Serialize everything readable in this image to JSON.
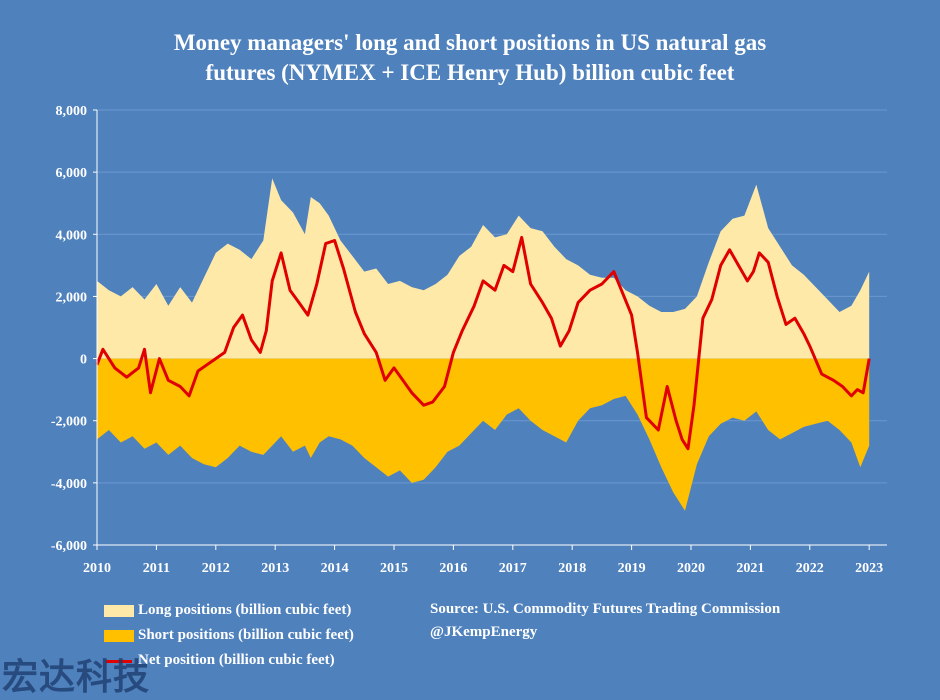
{
  "chart_data": {
    "type": "area",
    "title_line1": "Money managers' long and short positions in US natural gas",
    "title_line2": "futures (NYMEX + ICE Henry Hub) billion cubic feet",
    "xlabel": "",
    "ylabel": "",
    "xlim": [
      2010,
      2023.3
    ],
    "ylim": [
      -6000,
      8000
    ],
    "yticks": [
      -6000,
      -4000,
      -2000,
      0,
      2000,
      4000,
      6000,
      8000
    ],
    "ytick_labels": [
      "-6,000",
      "-4,000",
      "-2,000",
      "0",
      "2,000",
      "4,000",
      "6,000",
      "8,000"
    ],
    "xticks": [
      2010,
      2011,
      2012,
      2013,
      2014,
      2015,
      2016,
      2017,
      2018,
      2019,
      2020,
      2021,
      2022,
      2023
    ],
    "xtick_labels": [
      "2010",
      "2011",
      "2012",
      "2013",
      "2014",
      "2015",
      "2016",
      "2017",
      "2018",
      "2019",
      "2020",
      "2021",
      "2022",
      "2023"
    ],
    "grid": "horizontal",
    "legend_position": "bottom-left",
    "series": [
      {
        "name": "Long positions (billion cubic feet)",
        "type": "area",
        "color": "#ffe9a8",
        "x": [
          2010.0,
          2010.2,
          2010.4,
          2010.6,
          2010.8,
          2011.0,
          2011.2,
          2011.4,
          2011.6,
          2011.8,
          2012.0,
          2012.2,
          2012.4,
          2012.6,
          2012.8,
          2012.95,
          2013.1,
          2013.3,
          2013.5,
          2013.6,
          2013.75,
          2013.9,
          2014.1,
          2014.3,
          2014.5,
          2014.7,
          2014.9,
          2015.1,
          2015.3,
          2015.5,
          2015.7,
          2015.9,
          2016.1,
          2016.3,
          2016.5,
          2016.7,
          2016.9,
          2017.1,
          2017.3,
          2017.5,
          2017.7,
          2017.9,
          2018.1,
          2018.3,
          2018.5,
          2018.7,
          2018.9,
          2019.1,
          2019.3,
          2019.5,
          2019.7,
          2019.9,
          2020.1,
          2020.3,
          2020.5,
          2020.7,
          2020.9,
          2021.1,
          2021.3,
          2021.5,
          2021.7,
          2021.9,
          2022.1,
          2022.3,
          2022.5,
          2022.7,
          2022.85,
          2023.0
        ],
        "values": [
          2500,
          2200,
          2000,
          2300,
          1900,
          2400,
          1700,
          2300,
          1800,
          2600,
          3400,
          3700,
          3500,
          3200,
          3800,
          5800,
          5100,
          4700,
          4000,
          5200,
          5000,
          4600,
          3800,
          3300,
          2800,
          2900,
          2400,
          2500,
          2300,
          2200,
          2400,
          2700,
          3300,
          3600,
          4300,
          3900,
          4000,
          4600,
          4200,
          4100,
          3600,
          3200,
          3000,
          2700,
          2600,
          2600,
          2200,
          2000,
          1700,
          1500,
          1500,
          1600,
          2000,
          3100,
          4100,
          4500,
          4600,
          5600,
          4200,
          3600,
          3000,
          2700,
          2300,
          1900,
          1500,
          1700,
          2200,
          2800
        ]
      },
      {
        "name": "Short positions (billion cubic feet)",
        "type": "area",
        "color": "#ffc000",
        "x": [
          2010.0,
          2010.2,
          2010.4,
          2010.6,
          2010.8,
          2011.0,
          2011.2,
          2011.4,
          2011.6,
          2011.8,
          2012.0,
          2012.2,
          2012.4,
          2012.6,
          2012.8,
          2012.95,
          2013.1,
          2013.3,
          2013.5,
          2013.6,
          2013.75,
          2013.9,
          2014.1,
          2014.3,
          2014.5,
          2014.7,
          2014.9,
          2015.1,
          2015.3,
          2015.5,
          2015.7,
          2015.9,
          2016.1,
          2016.3,
          2016.5,
          2016.7,
          2016.9,
          2017.1,
          2017.3,
          2017.5,
          2017.7,
          2017.9,
          2018.1,
          2018.3,
          2018.5,
          2018.7,
          2018.9,
          2019.1,
          2019.3,
          2019.5,
          2019.7,
          2019.9,
          2020.1,
          2020.3,
          2020.5,
          2020.7,
          2020.9,
          2021.1,
          2021.3,
          2021.5,
          2021.7,
          2021.9,
          2022.1,
          2022.3,
          2022.5,
          2022.7,
          2022.85,
          2023.0
        ],
        "values": [
          -2600,
          -2300,
          -2700,
          -2500,
          -2900,
          -2700,
          -3100,
          -2800,
          -3200,
          -3400,
          -3500,
          -3200,
          -2800,
          -3000,
          -3100,
          -2800,
          -2500,
          -3000,
          -2800,
          -3200,
          -2700,
          -2500,
          -2600,
          -2800,
          -3200,
          -3500,
          -3800,
          -3600,
          -4000,
          -3900,
          -3500,
          -3000,
          -2800,
          -2400,
          -2000,
          -2300,
          -1800,
          -1600,
          -2000,
          -2300,
          -2500,
          -2700,
          -2000,
          -1600,
          -1500,
          -1300,
          -1200,
          -1800,
          -2600,
          -3500,
          -4300,
          -4900,
          -3400,
          -2500,
          -2100,
          -1900,
          -2000,
          -1700,
          -2300,
          -2600,
          -2400,
          -2200,
          -2100,
          -2000,
          -2300,
          -2700,
          -3500,
          -2800
        ]
      },
      {
        "name": "Net position (billion cubic feet)",
        "type": "line",
        "color": "#e00000",
        "x": [
          2010.0,
          2010.1,
          2010.3,
          2010.5,
          2010.7,
          2010.8,
          2010.9,
          2011.05,
          2011.2,
          2011.4,
          2011.55,
          2011.7,
          2011.85,
          2012.0,
          2012.15,
          2012.3,
          2012.45,
          2012.6,
          2012.75,
          2012.85,
          2012.95,
          2013.1,
          2013.25,
          2013.4,
          2013.55,
          2013.7,
          2013.85,
          2014.0,
          2014.15,
          2014.35,
          2014.5,
          2014.7,
          2014.85,
          2015.0,
          2015.15,
          2015.3,
          2015.5,
          2015.65,
          2015.85,
          2016.0,
          2016.15,
          2016.35,
          2016.5,
          2016.7,
          2016.85,
          2017.0,
          2017.15,
          2017.3,
          2017.5,
          2017.65,
          2017.8,
          2017.95,
          2018.1,
          2018.3,
          2018.5,
          2018.7,
          2018.85,
          2019.0,
          2019.1,
          2019.25,
          2019.45,
          2019.6,
          2019.75,
          2019.85,
          2019.95,
          2020.05,
          2020.2,
          2020.35,
          2020.5,
          2020.65,
          2020.8,
          2020.95,
          2021.05,
          2021.15,
          2021.3,
          2021.45,
          2021.6,
          2021.75,
          2021.9,
          2022.0,
          2022.2,
          2022.4,
          2022.55,
          2022.7,
          2022.8,
          2022.9,
          2023.0
        ],
        "values": [
          -200,
          300,
          -300,
          -600,
          -300,
          300,
          -1100,
          0,
          -700,
          -900,
          -1200,
          -400,
          -200,
          0,
          200,
          1000,
          1400,
          600,
          200,
          900,
          2500,
          3400,
          2200,
          1800,
          1400,
          2400,
          3700,
          3800,
          2900,
          1500,
          800,
          200,
          -700,
          -300,
          -700,
          -1100,
          -1500,
          -1400,
          -900,
          200,
          900,
          1700,
          2500,
          2200,
          3000,
          2800,
          3900,
          2400,
          1800,
          1300,
          400,
          900,
          1800,
          2200,
          2400,
          2800,
          2100,
          1400,
          200,
          -1900,
          -2300,
          -900,
          -2000,
          -2600,
          -2900,
          -1500,
          1300,
          1900,
          3000,
          3500,
          3000,
          2500,
          2800,
          3400,
          3100,
          2000,
          1100,
          1300,
          800,
          400,
          -500,
          -700,
          -900,
          -1200,
          -1000,
          -1100,
          0
        ]
      }
    ]
  },
  "legend": {
    "long_label": "Long positions (billion cubic feet)",
    "short_label": "Short positions (billion cubic feet)",
    "net_label": "Net position (billion cubic feet)"
  },
  "source": {
    "line1": "Source: U.S. Commodity Futures Trading Commission",
    "line2": "@JKempEnergy"
  },
  "watermark": "宏达科技",
  "colors": {
    "background": "#4f81bd",
    "long": "#ffe9a8",
    "short": "#ffc000",
    "net": "#e00000",
    "grid": "#6b97cf",
    "text": "#ffffff"
  }
}
